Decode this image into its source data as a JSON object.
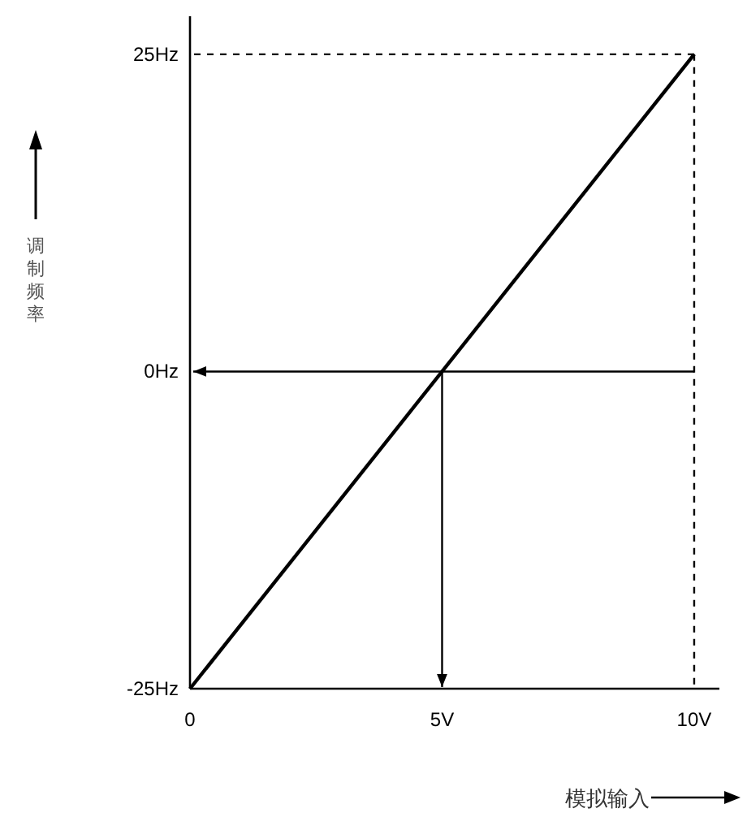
{
  "chart_data": {
    "type": "line",
    "xlabel": "模拟输入",
    "ylabel": "调制频率",
    "x": [
      0,
      10
    ],
    "series": [
      {
        "color": "#000000",
        "values": [
          -25,
          25
        ]
      }
    ],
    "xlim": [
      0,
      10.5
    ],
    "ylim": [
      -25,
      28
    ],
    "xticks": [
      0,
      {
        "value": 5,
        "label": "5V"
      },
      {
        "value": 10,
        "label": "10V"
      }
    ],
    "yticks": [
      {
        "value": -25,
        "label": "-25Hz"
      },
      {
        "value": 0,
        "label": "0Hz"
      },
      {
        "value": 25,
        "label": "25Hz"
      }
    ],
    "ref_lines": [
      {
        "axis": "y",
        "value": 25,
        "line_style": "dashed",
        "color": "#000000"
      },
      {
        "axis": "x",
        "value": 10,
        "line_style": "dashed",
        "color": "#000000"
      },
      {
        "axis": "y",
        "value": 0,
        "line_style": "solid",
        "color": "#000000"
      },
      {
        "axis": "x",
        "value": 5,
        "line_style": "solid",
        "color": "#000000"
      }
    ],
    "grid": false,
    "marker": "none",
    "line_style": "solid"
  }
}
